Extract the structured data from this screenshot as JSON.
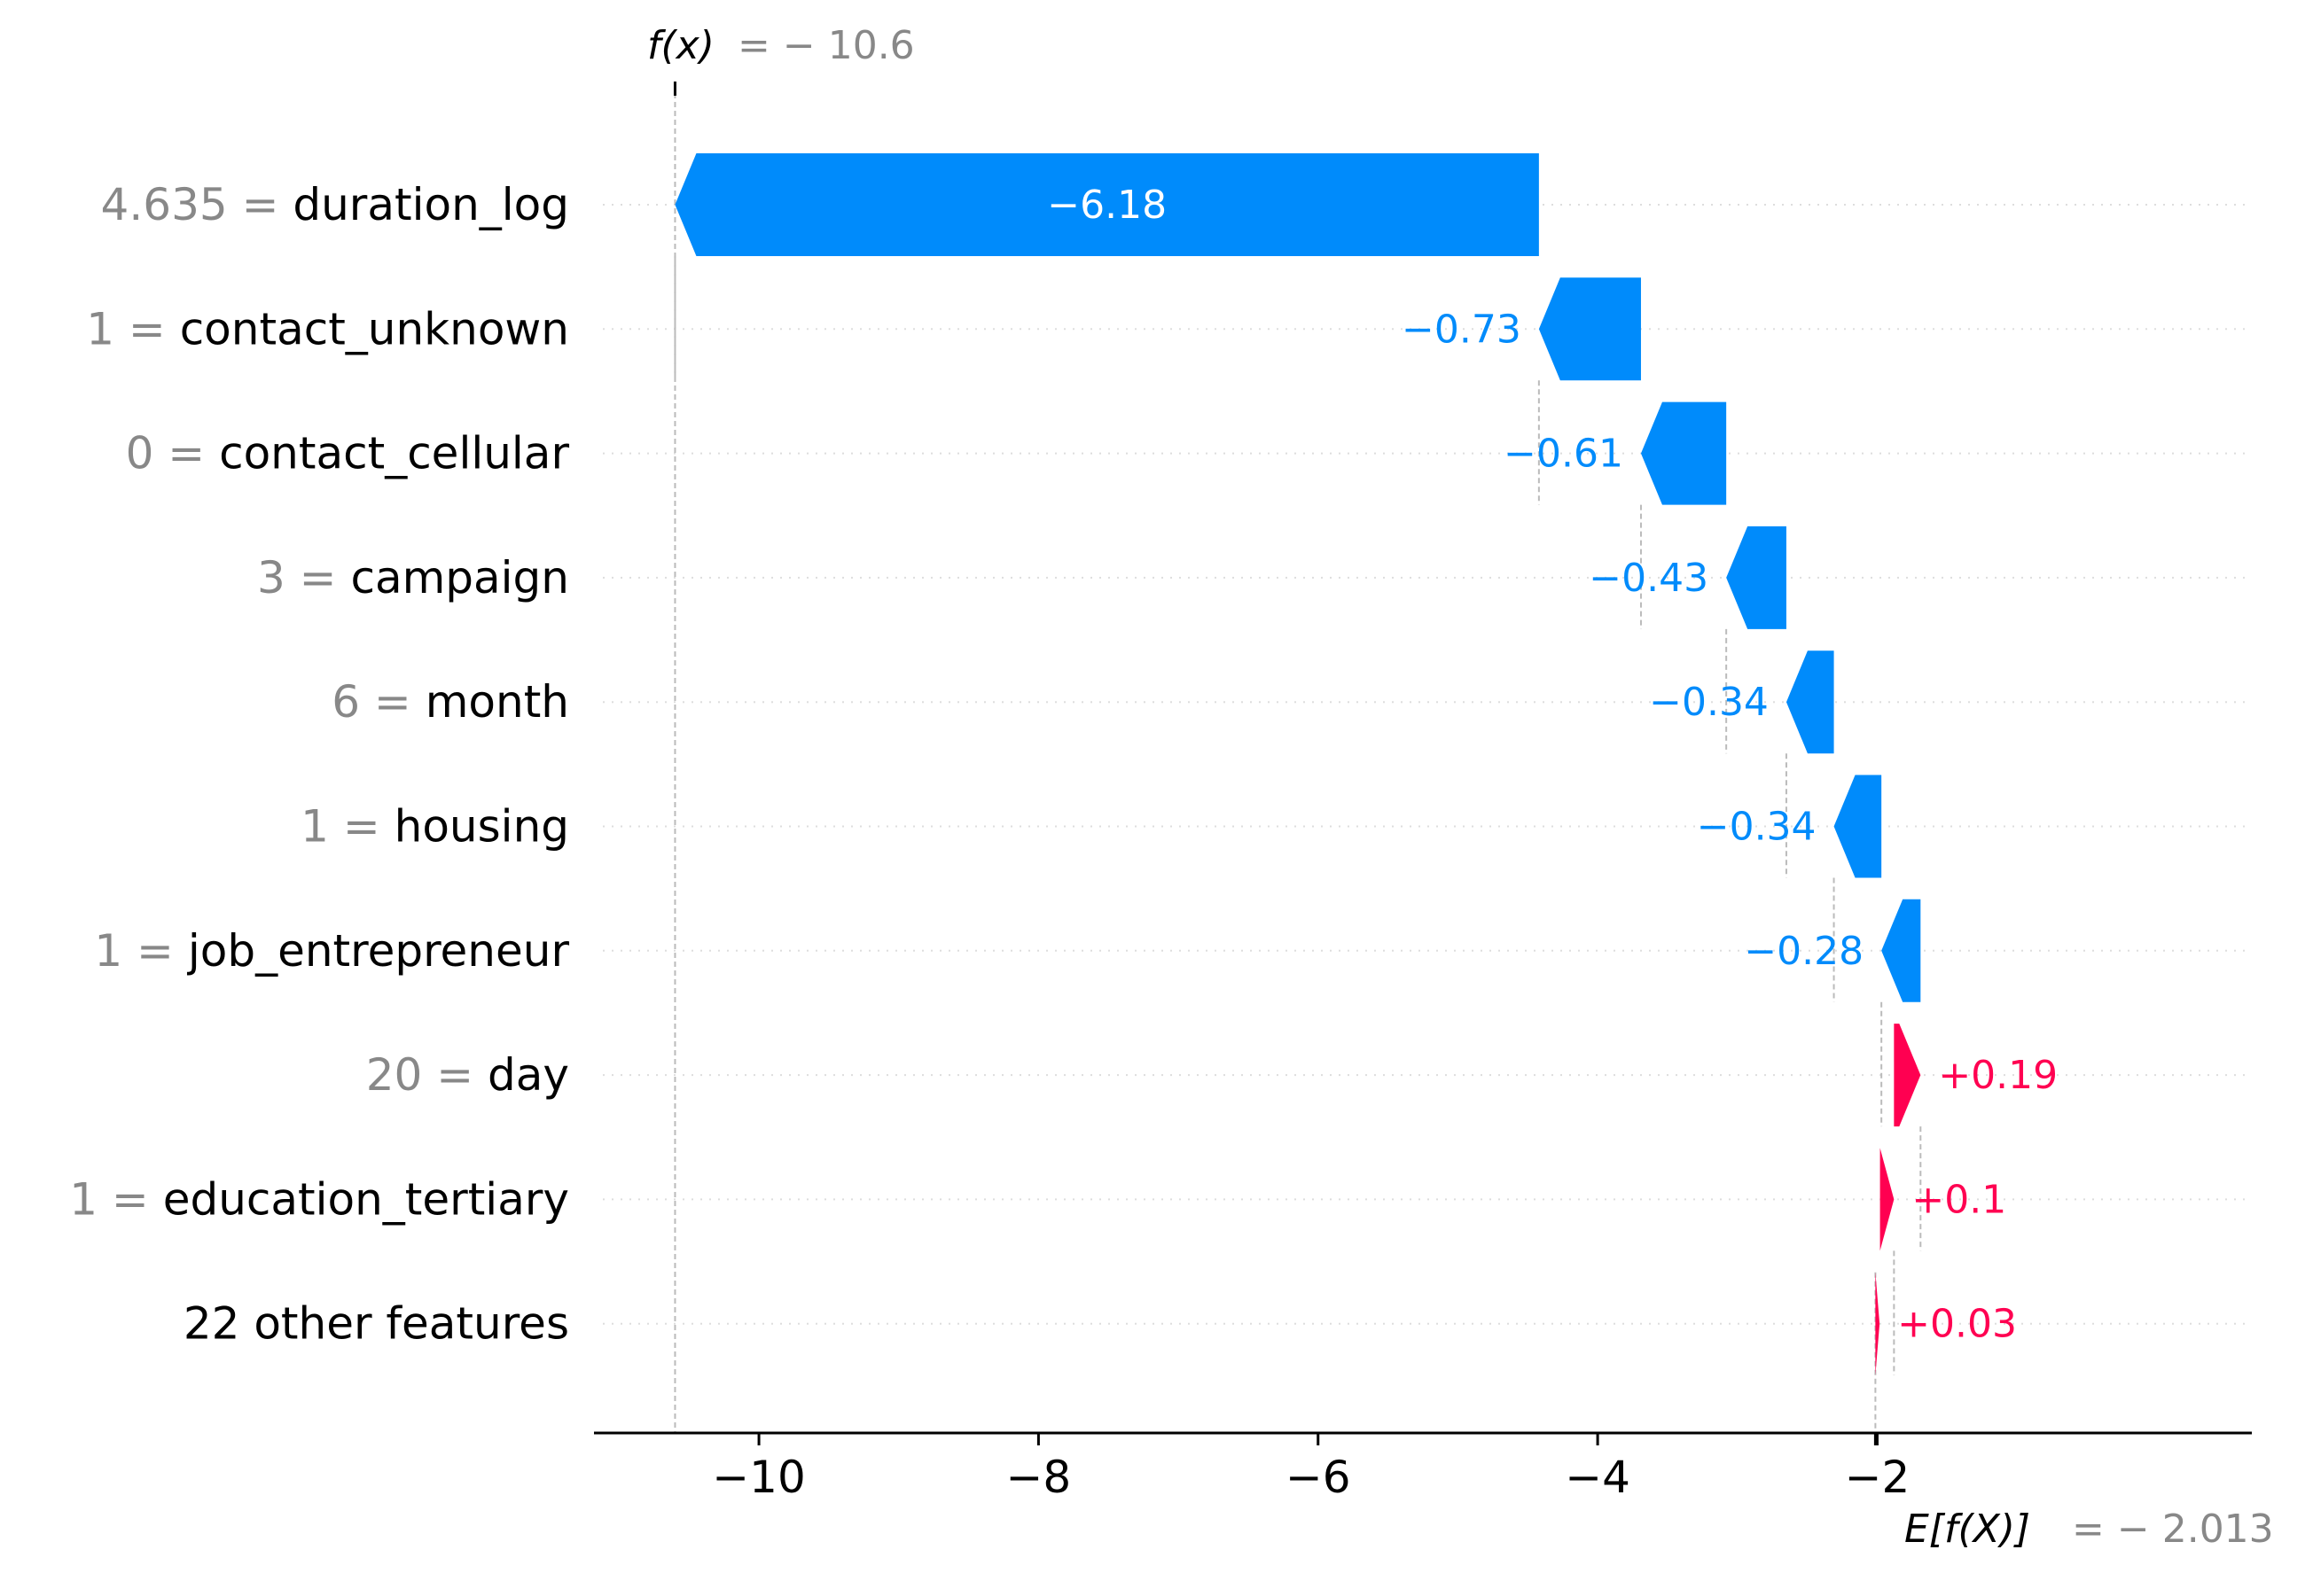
{
  "chart_data": {
    "type": "waterfall",
    "fx_label": "f(x)",
    "fx_value_text": "= − 10.6",
    "fx_value": -10.6,
    "efx_label": "E[f(X)]",
    "efx_value_text": "= − 2.013",
    "efx_value": -2.013,
    "xlim": [
      -11.18,
      0.68
    ],
    "xticks": [
      {
        "value": -10,
        "label": "−10"
      },
      {
        "value": -8,
        "label": "−8"
      },
      {
        "value": -6,
        "label": "−6"
      },
      {
        "value": -4,
        "label": "−4"
      },
      {
        "value": -2,
        "label": "−2"
      }
    ],
    "features": [
      {
        "value_text": "4.635 =",
        "name": "duration_log",
        "contribution": -6.18,
        "label": "−6.18",
        "start": -4.42
      },
      {
        "value_text": "1 =",
        "name": "contact_unknown",
        "contribution": -0.73,
        "label": "−0.73",
        "start": -3.69
      },
      {
        "value_text": "0 =",
        "name": "contact_cellular",
        "contribution": -0.61,
        "label": "−0.61",
        "start": -3.08
      },
      {
        "value_text": "3 =",
        "name": "campaign",
        "contribution": -0.43,
        "label": "−0.43",
        "start": -2.65
      },
      {
        "value_text": "6 =",
        "name": "month",
        "contribution": -0.34,
        "label": "−0.34",
        "start": -2.31
      },
      {
        "value_text": "1 =",
        "name": "housing",
        "contribution": -0.34,
        "label": "−0.34",
        "start": -1.97
      },
      {
        "value_text": "1 =",
        "name": "job_entrepreneur",
        "contribution": -0.28,
        "label": "−0.28",
        "start": -1.69
      },
      {
        "value_text": "20 =",
        "name": "day",
        "contribution": 0.19,
        "label": "+0.19",
        "start": -1.88
      },
      {
        "value_text": "1 =",
        "name": "education_tertiary",
        "contribution": 0.1,
        "label": "+0.1",
        "start": -1.98
      },
      {
        "value_text": "",
        "name": "22 other features",
        "contribution": 0.03,
        "label": "+0.03",
        "start": -2.013
      }
    ],
    "colors": {
      "negative": "#008bfb",
      "positive": "#ff0051",
      "axis": "#000000",
      "muted": "#888888",
      "guide": "#bbbbbb",
      "grid": "#dddddd"
    }
  }
}
